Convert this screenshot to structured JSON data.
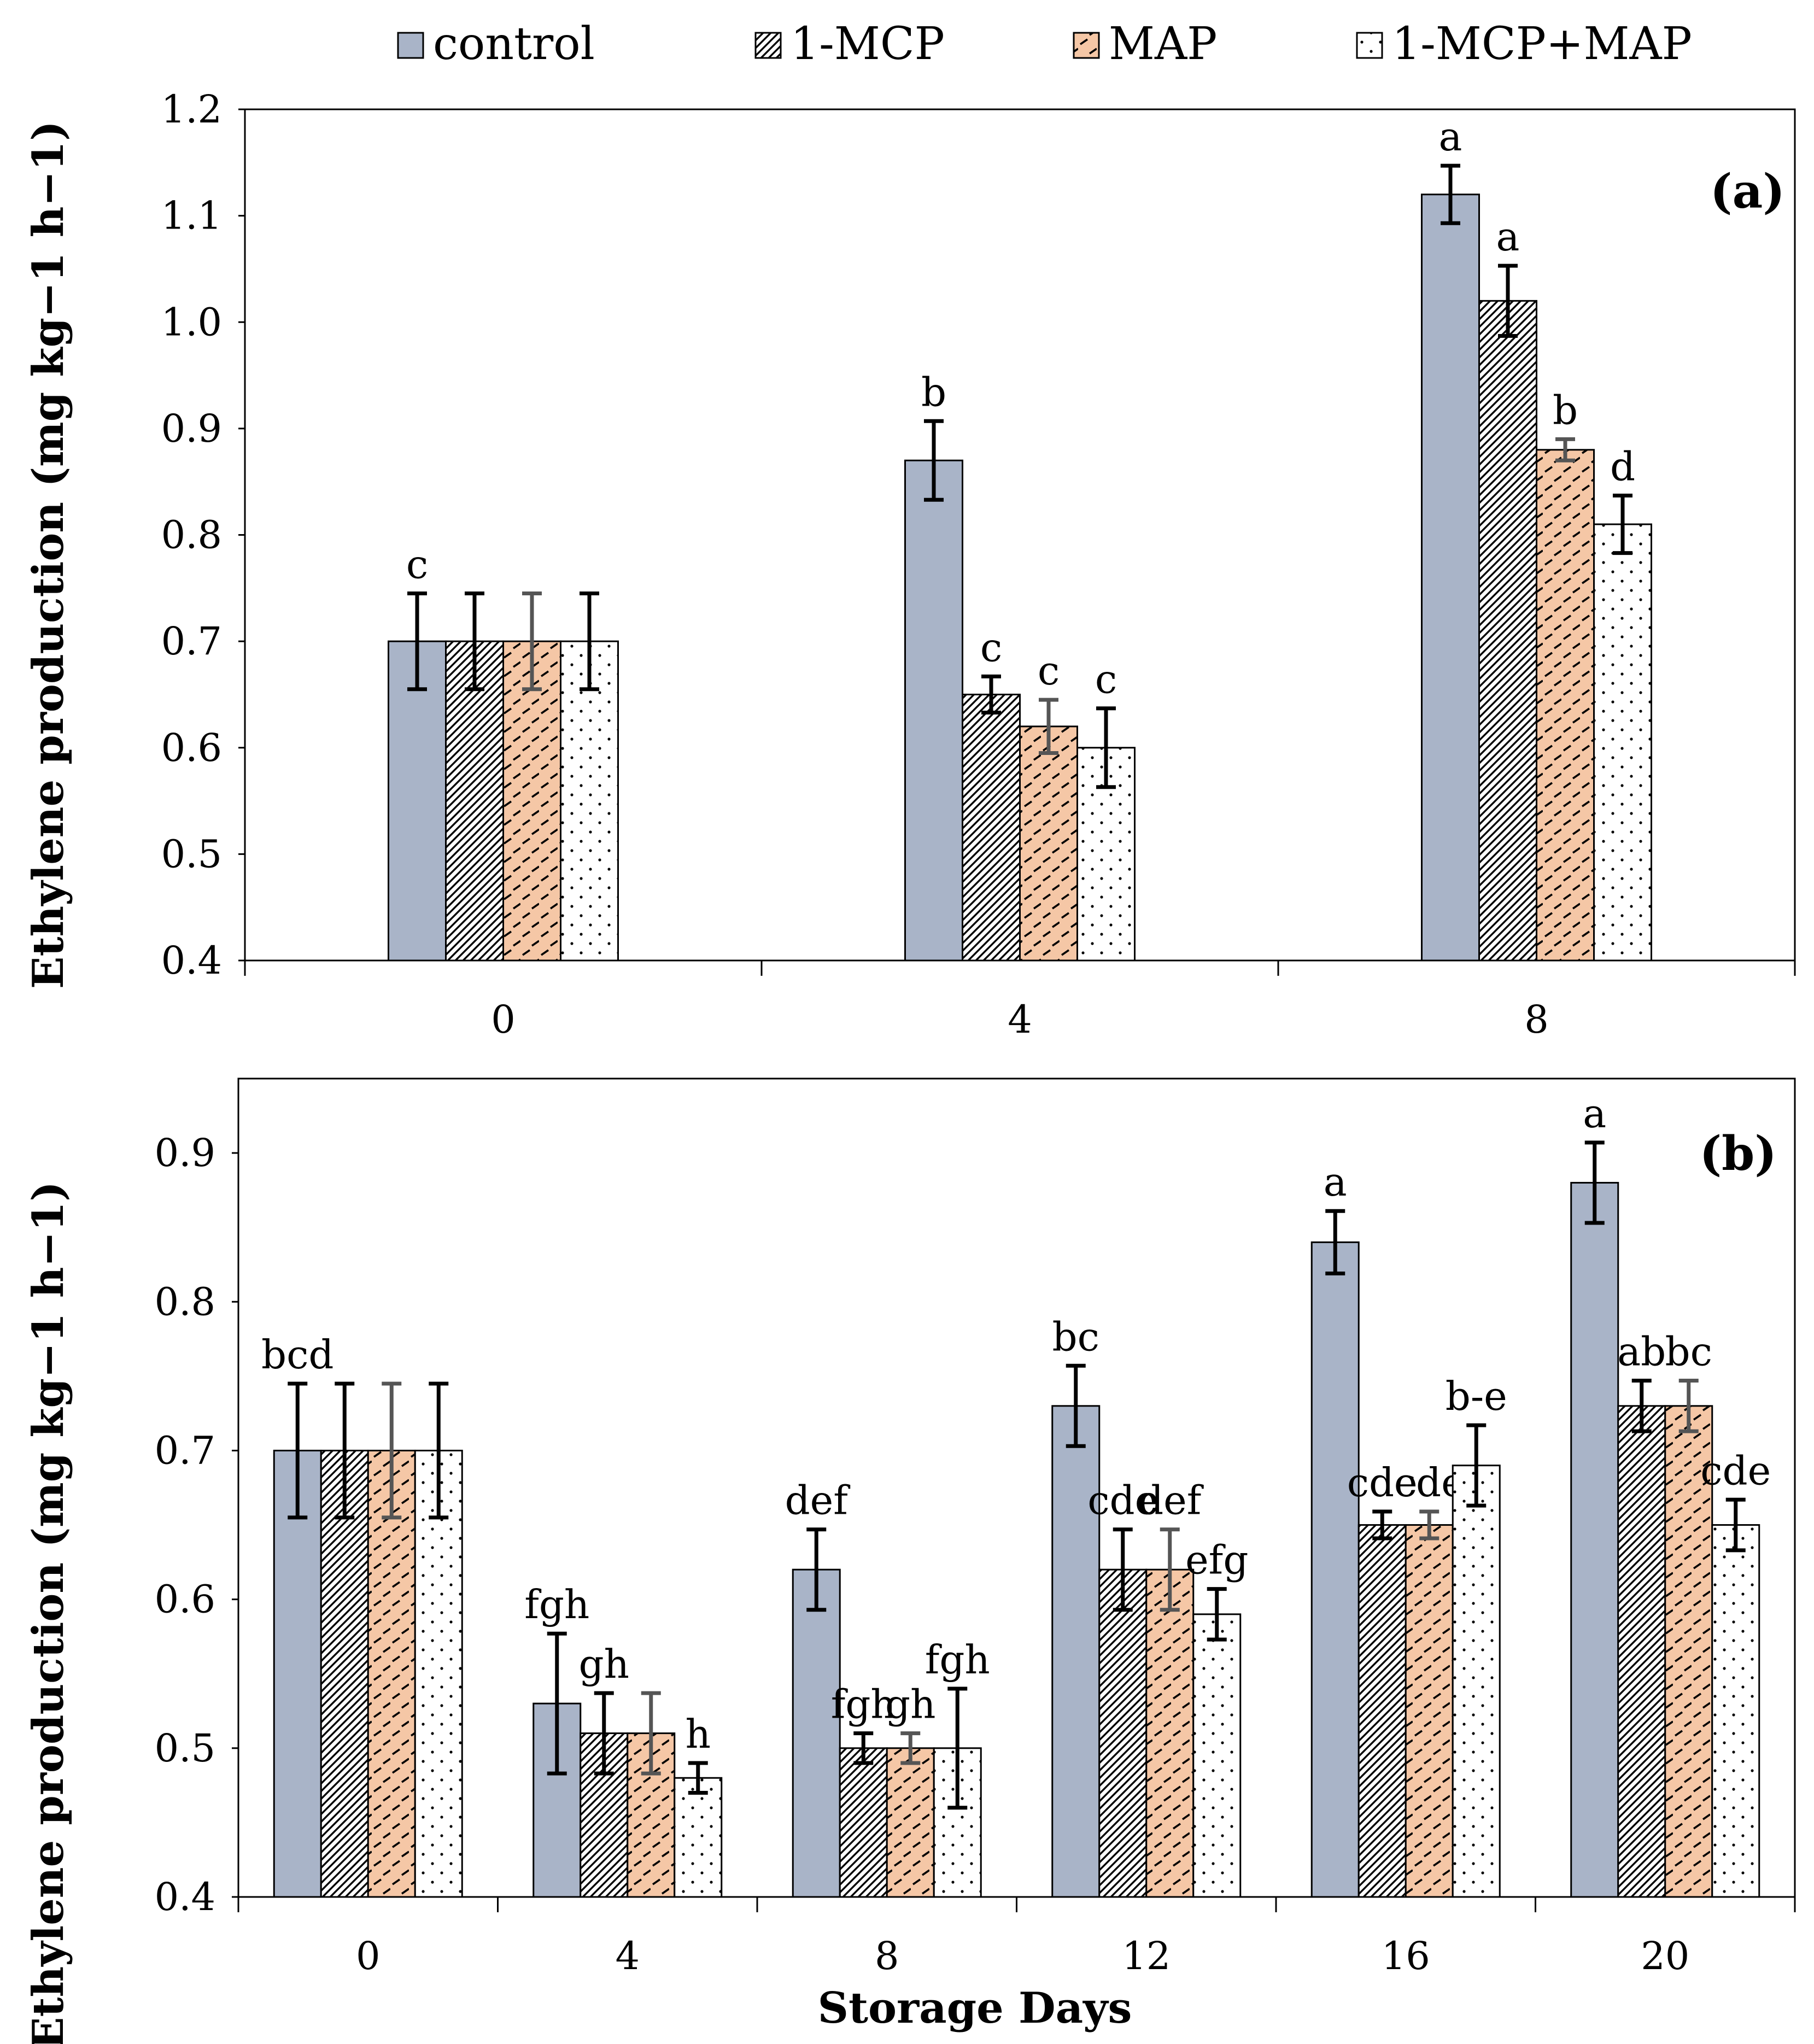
{
  "colors": {
    "control": "#a9b4c8",
    "map": "#f5c7a6",
    "bar_stroke": "#000000",
    "err_dark": "#000000",
    "err_gray": "#555555"
  },
  "legend": [
    {
      "name": "control",
      "pattern": "solid"
    },
    {
      "name": "1-MCP",
      "pattern": "hatch"
    },
    {
      "name": "MAP",
      "pattern": "dashes"
    },
    {
      "name": "1-MCP+MAP",
      "pattern": "dots"
    }
  ],
  "chart_data": [
    {
      "type": "bar",
      "panel_label": "(a)",
      "xlabel": "",
      "ylabel": "Ethylene production (mg kg−1 h−1)",
      "ylim": [
        0.4,
        1.2
      ],
      "yticks": [
        "0.4",
        "0.5",
        "0.6",
        "0.7",
        "0.8",
        "0.9",
        "1.0",
        "1.1",
        "1.2"
      ],
      "categories": [
        "0",
        "4",
        "8"
      ],
      "series": [
        {
          "name": "control",
          "values": [
            0.7,
            0.87,
            1.12
          ],
          "errors": [
            0.045,
            0.037,
            0.027
          ],
          "letters": [
            "c",
            "b",
            "a"
          ]
        },
        {
          "name": "1-MCP",
          "values": [
            0.7,
            0.65,
            1.02
          ],
          "errors": [
            0.045,
            0.017,
            0.033
          ],
          "letters": [
            "",
            "c",
            "a"
          ]
        },
        {
          "name": "MAP",
          "values": [
            0.7,
            0.62,
            0.88
          ],
          "errors": [
            0.045,
            0.025,
            0.01
          ],
          "letters": [
            "",
            "c",
            "b"
          ]
        },
        {
          "name": "1-MCP+MAP",
          "values": [
            0.7,
            0.6,
            0.81
          ],
          "errors": [
            0.045,
            0.037,
            0.027
          ],
          "letters": [
            "",
            "c",
            "d"
          ]
        }
      ]
    },
    {
      "type": "bar",
      "panel_label": "(b)",
      "xlabel": "Storage Days",
      "ylabel": "Ethylene production (mg kg−1 h−1)",
      "ylim": [
        0.4,
        0.95
      ],
      "yticks": [
        "0.4",
        "0.5",
        "0.6",
        "0.7",
        "0.8",
        "0.9"
      ],
      "categories": [
        "0",
        "4",
        "8",
        "12",
        "16",
        "20"
      ],
      "series": [
        {
          "name": "control",
          "values": [
            0.7,
            0.53,
            0.62,
            0.73,
            0.84,
            0.88
          ],
          "errors": [
            0.045,
            0.047,
            0.027,
            0.027,
            0.021,
            0.027
          ],
          "letters": [
            "bcd",
            "fgh",
            "def",
            "bc",
            "a",
            "a"
          ]
        },
        {
          "name": "1-MCP",
          "values": [
            0.7,
            0.51,
            0.5,
            0.62,
            0.65,
            0.73
          ],
          "errors": [
            0.045,
            0.027,
            0.01,
            0.027,
            0.009,
            0.017
          ],
          "letters": [
            "",
            "gh",
            "fgh",
            "cde",
            "cde",
            "ab"
          ]
        },
        {
          "name": "MAP",
          "values": [
            0.7,
            0.51,
            0.5,
            0.62,
            0.65,
            0.73
          ],
          "errors": [
            0.045,
            0.027,
            0.01,
            0.027,
            0.009,
            0.017
          ],
          "letters": [
            "",
            "",
            "gh",
            "def",
            "cde",
            "bc"
          ]
        },
        {
          "name": "1-MCP+MAP",
          "values": [
            0.7,
            0.48,
            0.5,
            0.59,
            0.69,
            0.65
          ],
          "errors": [
            0.045,
            0.01,
            0.04,
            0.017,
            0.027,
            0.017
          ],
          "letters": [
            "",
            "h",
            "fgh",
            "efg",
            "b-e",
            "cde"
          ]
        }
      ]
    }
  ]
}
